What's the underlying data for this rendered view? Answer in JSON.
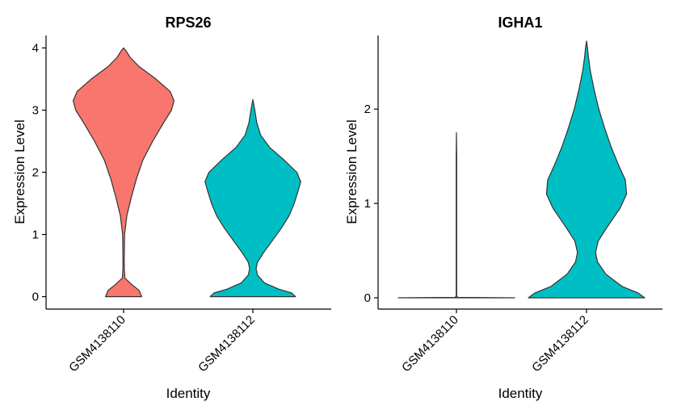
{
  "chart_data": [
    {
      "type": "violin",
      "title": "RPS26",
      "xlabel": "Identity",
      "ylabel": "Expression Level",
      "ylim": [
        -0.2,
        4.2
      ],
      "yticks": [
        "0",
        "1",
        "2",
        "3",
        "4"
      ],
      "categories": [
        "GSM4138110",
        "GSM4138112"
      ],
      "series": [
        {
          "name": "GSM4138110",
          "color": "#F8766D",
          "ymin": 0,
          "ymax": 4.0,
          "profile": [
            [
              0.0,
              0.28
            ],
            [
              0.1,
              0.24
            ],
            [
              0.2,
              0.12
            ],
            [
              0.3,
              0.02
            ],
            [
              0.45,
              0.01
            ],
            [
              0.6,
              0.01
            ],
            [
              0.8,
              0.012
            ],
            [
              1.0,
              0.015
            ],
            [
              1.3,
              0.05
            ],
            [
              1.6,
              0.12
            ],
            [
              1.9,
              0.2
            ],
            [
              2.2,
              0.3
            ],
            [
              2.5,
              0.45
            ],
            [
              2.8,
              0.62
            ],
            [
              3.0,
              0.74
            ],
            [
              3.15,
              0.78
            ],
            [
              3.3,
              0.72
            ],
            [
              3.5,
              0.5
            ],
            [
              3.7,
              0.24
            ],
            [
              3.85,
              0.1
            ],
            [
              3.95,
              0.04
            ],
            [
              4.0,
              0.0
            ]
          ]
        },
        {
          "name": "GSM4138112",
          "color": "#00BFC4",
          "ymin": 0,
          "ymax": 3.17,
          "profile": [
            [
              0.0,
              0.66
            ],
            [
              0.06,
              0.6
            ],
            [
              0.12,
              0.4
            ],
            [
              0.22,
              0.18
            ],
            [
              0.35,
              0.07
            ],
            [
              0.45,
              0.05
            ],
            [
              0.55,
              0.07
            ],
            [
              0.7,
              0.16
            ],
            [
              0.9,
              0.3
            ],
            [
              1.1,
              0.44
            ],
            [
              1.3,
              0.56
            ],
            [
              1.5,
              0.64
            ],
            [
              1.7,
              0.7
            ],
            [
              1.85,
              0.74
            ],
            [
              2.0,
              0.68
            ],
            [
              2.2,
              0.48
            ],
            [
              2.4,
              0.26
            ],
            [
              2.6,
              0.12
            ],
            [
              2.8,
              0.06
            ],
            [
              3.0,
              0.03
            ],
            [
              3.17,
              0.0
            ]
          ]
        }
      ]
    },
    {
      "type": "violin",
      "title": "IGHA1",
      "xlabel": "Identity",
      "ylabel": "Expression Level",
      "ylim": [
        -0.12,
        2.78
      ],
      "yticks": [
        "0",
        "1",
        "2"
      ],
      "categories": [
        "GSM4138110",
        "GSM4138112"
      ],
      "series": [
        {
          "name": "GSM4138110",
          "color": "#F8766D",
          "ymin": 0,
          "ymax": 1.75,
          "profile": [
            [
              0.0,
              0.9
            ],
            [
              0.004,
              0.02
            ],
            [
              0.02,
              0.004
            ],
            [
              0.3,
              0.004
            ],
            [
              1.0,
              0.004
            ],
            [
              1.5,
              0.004
            ],
            [
              1.75,
              0.0
            ]
          ]
        },
        {
          "name": "GSM4138112",
          "color": "#00BFC4",
          "ymin": 0,
          "ymax": 2.72,
          "profile": [
            [
              0.0,
              0.9
            ],
            [
              0.05,
              0.8
            ],
            [
              0.12,
              0.55
            ],
            [
              0.25,
              0.3
            ],
            [
              0.38,
              0.17
            ],
            [
              0.48,
              0.14
            ],
            [
              0.6,
              0.18
            ],
            [
              0.75,
              0.32
            ],
            [
              0.95,
              0.52
            ],
            [
              1.1,
              0.62
            ],
            [
              1.25,
              0.6
            ],
            [
              1.4,
              0.5
            ],
            [
              1.6,
              0.38
            ],
            [
              1.8,
              0.28
            ],
            [
              2.0,
              0.19
            ],
            [
              2.2,
              0.12
            ],
            [
              2.4,
              0.06
            ],
            [
              2.55,
              0.03
            ],
            [
              2.65,
              0.015
            ],
            [
              2.72,
              0.0
            ]
          ]
        }
      ]
    }
  ]
}
